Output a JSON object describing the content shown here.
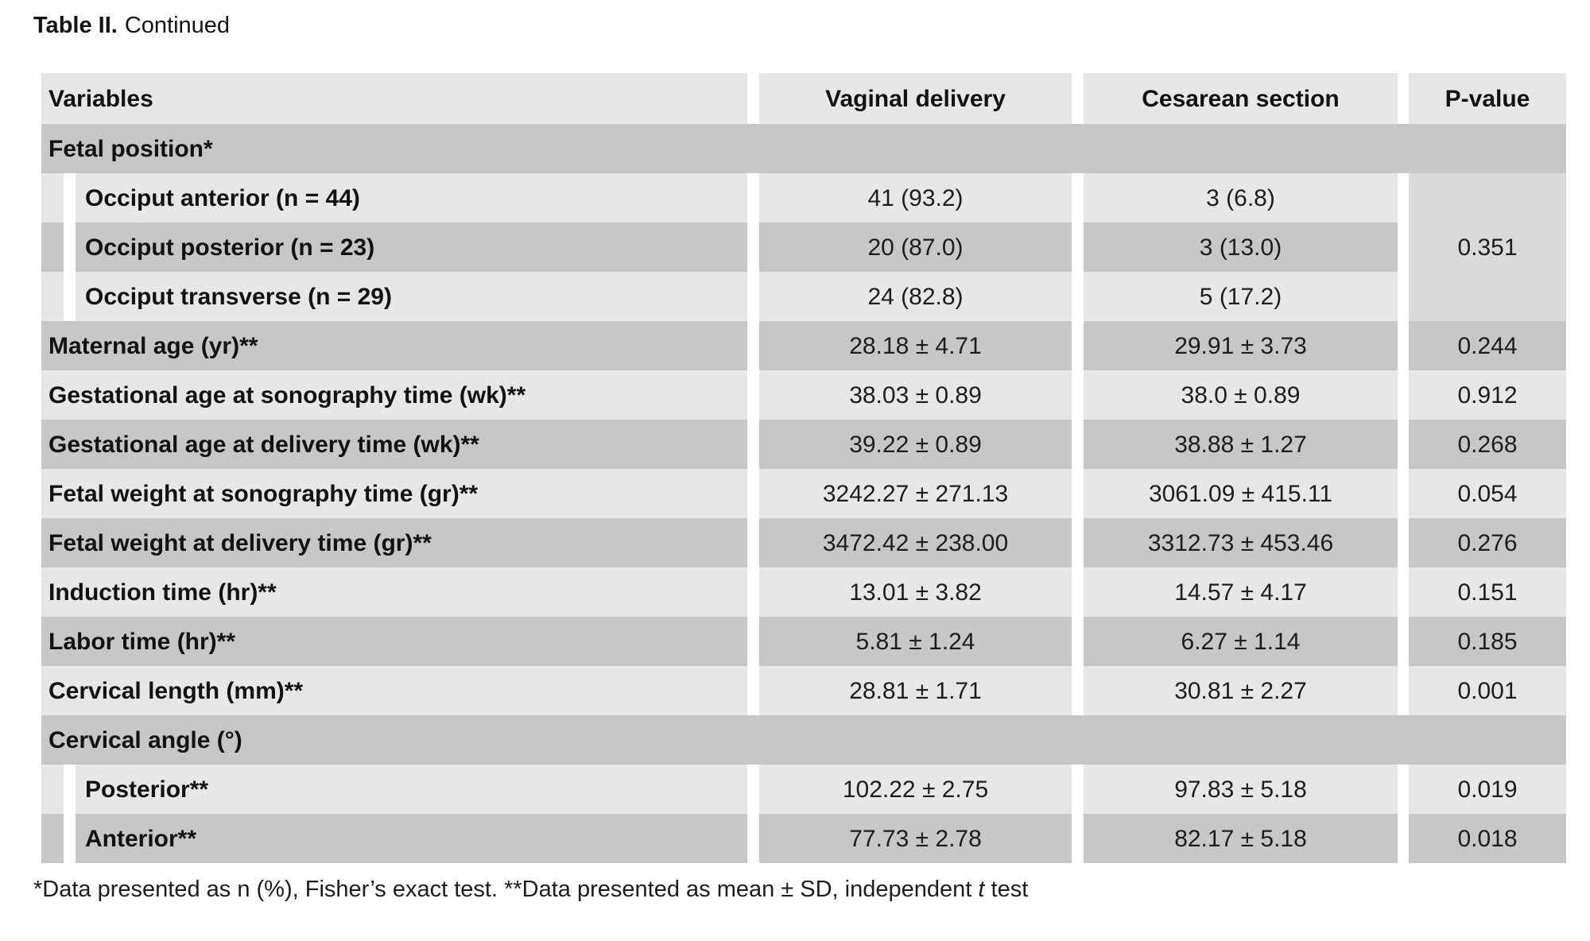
{
  "title": {
    "prefix": "Table II.",
    "rest": "Continued"
  },
  "colors": {
    "row_light": "#e7e7e7",
    "row_dark": "#c7c7c7",
    "merged_p_cell": "#dadada",
    "text": "#1d1d1d",
    "background": "#ffffff"
  },
  "table": {
    "headers": [
      "Variables",
      "Vaginal delivery",
      "Cesarean section",
      "P-value"
    ],
    "merged_p": "0.351",
    "rows": [
      {
        "kind": "section",
        "label": "Fetal position*"
      },
      {
        "kind": "indent",
        "label": "Occiput anterior (n = 44)",
        "vaginal": "41 (93.2)",
        "cesarean": "3 (6.8)"
      },
      {
        "kind": "indent",
        "label": "Occiput posterior (n = 23)",
        "vaginal": "20 (87.0)",
        "cesarean": "3 (13.0)"
      },
      {
        "kind": "indent",
        "label": "Occiput transverse (n = 29)",
        "vaginal": "24 (82.8)",
        "cesarean": "5 (17.2)"
      },
      {
        "kind": "data",
        "label": "Maternal age (yr)**",
        "vaginal": "28.18 ± 4.71",
        "cesarean": "29.91 ± 3.73",
        "p": "0.244"
      },
      {
        "kind": "data",
        "label": "Gestational age at sonography time (wk)**",
        "vaginal": "38.03 ± 0.89",
        "cesarean": "38.0 ± 0.89",
        "p": "0.912"
      },
      {
        "kind": "data",
        "label": "Gestational age at delivery time (wk)**",
        "vaginal": "39.22 ± 0.89",
        "cesarean": "38.88 ± 1.27",
        "p": "0.268"
      },
      {
        "kind": "data",
        "label": "Fetal weight at sonography time (gr)**",
        "vaginal": "3242.27 ± 271.13",
        "cesarean": "3061.09 ± 415.11",
        "p": "0.054"
      },
      {
        "kind": "data",
        "label": "Fetal weight at delivery time (gr)**",
        "vaginal": "3472.42 ± 238.00",
        "cesarean": "3312.73 ± 453.46",
        "p": "0.276"
      },
      {
        "kind": "data",
        "label": "Induction time (hr)**",
        "vaginal": "13.01 ± 3.82",
        "cesarean": "14.57 ± 4.17",
        "p": "0.151"
      },
      {
        "kind": "data",
        "label": "Labor time (hr)**",
        "vaginal": "5.81 ± 1.24",
        "cesarean": "6.27 ± 1.14",
        "p": "0.185"
      },
      {
        "kind": "data",
        "label": "Cervical length (mm)**",
        "vaginal": "28.81 ± 1.71",
        "cesarean": "30.81 ± 2.27",
        "p": "0.001"
      },
      {
        "kind": "section",
        "label": "Cervical angle (°)"
      },
      {
        "kind": "indent",
        "label": "Posterior**",
        "vaginal": "102.22 ± 2.75",
        "cesarean": "97.83 ± 5.18",
        "p": "0.019"
      },
      {
        "kind": "indent",
        "label": "Anterior**",
        "vaginal": "77.73 ± 2.78",
        "cesarean": "82.17 ± 5.18",
        "p": "0.018"
      }
    ]
  },
  "footnote": {
    "part1": "*Data presented as n (%), Fisher’s exact test. **Data presented as mean ± SD, independent ",
    "italic": "t",
    "part2": " test"
  }
}
